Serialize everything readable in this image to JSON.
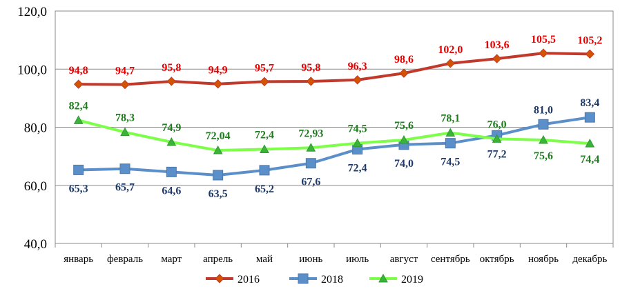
{
  "chart_data": {
    "type": "line",
    "categories": [
      "январь",
      "февраль",
      "март",
      "апрель",
      "май",
      "июнь",
      "июль",
      "август",
      "сентябрь",
      "октябрь",
      "ноябрь",
      "декабрь"
    ],
    "ylim": [
      40,
      120
    ],
    "yticks": [
      "40,0",
      "60,0",
      "80,0",
      "100,0",
      "120,0"
    ],
    "grid": true,
    "legend_position": "bottom",
    "series": [
      {
        "name": "2016",
        "color": "#c0392b",
        "marker": "diamond",
        "values": [
          94.8,
          94.7,
          95.8,
          94.9,
          95.7,
          95.8,
          96.3,
          98.6,
          102.0,
          103.6,
          105.5,
          105.2
        ],
        "labels": [
          "94,8",
          "94,7",
          "95,8",
          "94,9",
          "95,7",
          "95,8",
          "96,3",
          "98,6",
          "102,0",
          "103,6",
          "105,5",
          "105,2"
        ],
        "label_color": "#e60000"
      },
      {
        "name": "2018",
        "color": "#5b8fc9",
        "marker": "square",
        "values": [
          65.3,
          65.7,
          64.6,
          63.5,
          65.2,
          67.6,
          72.4,
          74.0,
          74.5,
          77.2,
          81.0,
          83.4
        ],
        "labels": [
          "65,3",
          "65,7",
          "64,6",
          "63,5",
          "65,2",
          "67,6",
          "72,4",
          "74,0",
          "74,5",
          "77,2",
          "81,0",
          "83,4"
        ],
        "label_color": "#1f3a68"
      },
      {
        "name": "2019",
        "color": "#7dff4a",
        "marker": "triangle",
        "values": [
          82.4,
          78.3,
          74.9,
          72.04,
          72.4,
          72.93,
          74.5,
          75.6,
          78.1,
          76.0,
          75.6,
          74.4
        ],
        "labels": [
          "82,4",
          "78,3",
          "74,9",
          "72,04",
          "72,4",
          "72,93",
          "74,5",
          "75,6",
          "78,1",
          "76,0",
          "75,6",
          "74,4"
        ],
        "label_color": "#1e7d1e"
      }
    ]
  }
}
